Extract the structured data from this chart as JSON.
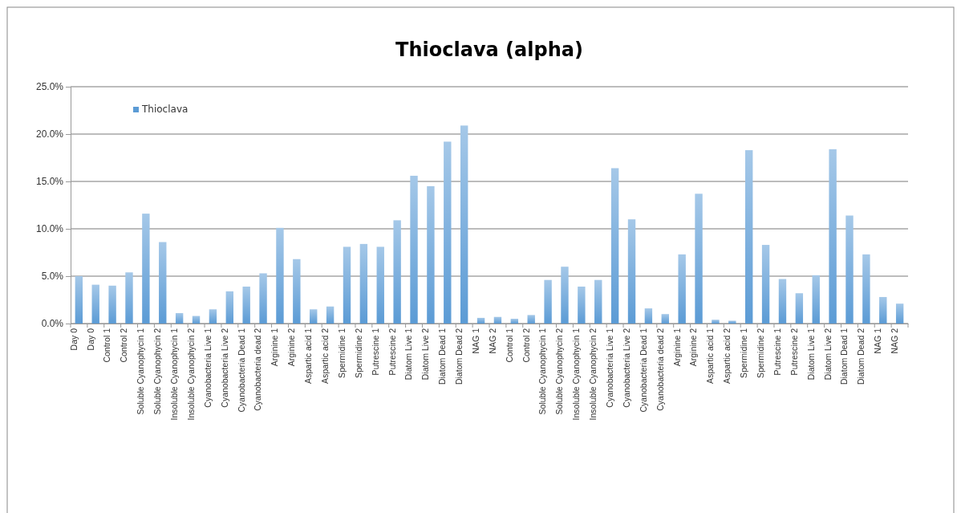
{
  "chart_data": {
    "type": "bar",
    "title": "Thioclava (alpha)",
    "categories": [
      "Day 0",
      "Day 0",
      "Control 1",
      "Control 2",
      "Soluble Cyanophycin 1",
      "Soluble Cyanophycin 2",
      "Insoluble Cyanophycin 1",
      "Insoluble Cyanophycin 2",
      "Cyanobacteria Live 1",
      "Cyanobacteria Live 2",
      "Cyanobacteria Dead 1",
      "Cyanobacteria dead 2",
      "Arginine 1",
      "Arginine 2",
      "Aspartic acid 1",
      "Aspartic acid 2",
      "Spermidine 1",
      "Spermidine 2",
      "Putrescine 1",
      "Putrescine 2",
      "Diatom Live 1",
      "Diatom Live 2",
      "Diatom Dead 1",
      "Diatom Dead 2",
      "NAG 1",
      "NAG 2",
      "Control 1",
      "Control 2",
      "Soluble Cyanophycin 1",
      "Soluble Cyanophycin 2",
      "Insoluble Cyanophycin 1",
      "Insoluble Cyanophycin 2",
      "Cyanobacteria Live 1",
      "Cyanobacteria Live 2",
      "Cyanobacteria Dead 1",
      "Cyanobacteria dead 2",
      "Arginine 1",
      "Arginine 2",
      "Aspartic acid 1",
      "Aspartic acid 2",
      "Spermidine 1",
      "Spermidine 2",
      "Putrescine 1",
      "Putrescine 2",
      "Diatom Live 1",
      "Diatom Live 2",
      "Diatom Dead 1",
      "Diatom Dead 2",
      "NAG 1",
      "NAG 2"
    ],
    "series": [
      {
        "name": "Thioclava",
        "color": "#5b9bd5",
        "values": [
          5.0,
          4.1,
          4.0,
          5.4,
          11.6,
          8.6,
          1.1,
          0.8,
          1.5,
          3.4,
          3.9,
          5.3,
          10.1,
          6.8,
          1.5,
          1.8,
          8.1,
          8.4,
          8.1,
          10.9,
          15.6,
          14.5,
          19.2,
          20.9,
          0.6,
          0.7,
          0.5,
          0.9,
          4.6,
          6.0,
          3.9,
          4.6,
          16.4,
          11.0,
          1.6,
          1.0,
          7.3,
          13.7,
          0.4,
          0.3,
          18.3,
          8.3,
          4.7,
          3.2,
          5.1,
          18.4,
          11.4,
          7.3,
          2.8,
          2.1
        ]
      }
    ],
    "ylim": [
      0,
      25
    ],
    "yticks": [
      {
        "value": 0,
        "label": "0.0%"
      },
      {
        "value": 5,
        "label": "5.0%"
      },
      {
        "value": 10,
        "label": "10.0%"
      },
      {
        "value": 15,
        "label": "15.0%"
      },
      {
        "value": 20,
        "label": "20.0%"
      },
      {
        "value": 25,
        "label": "25.0%"
      }
    ],
    "grid": "y",
    "legend": "top left"
  }
}
